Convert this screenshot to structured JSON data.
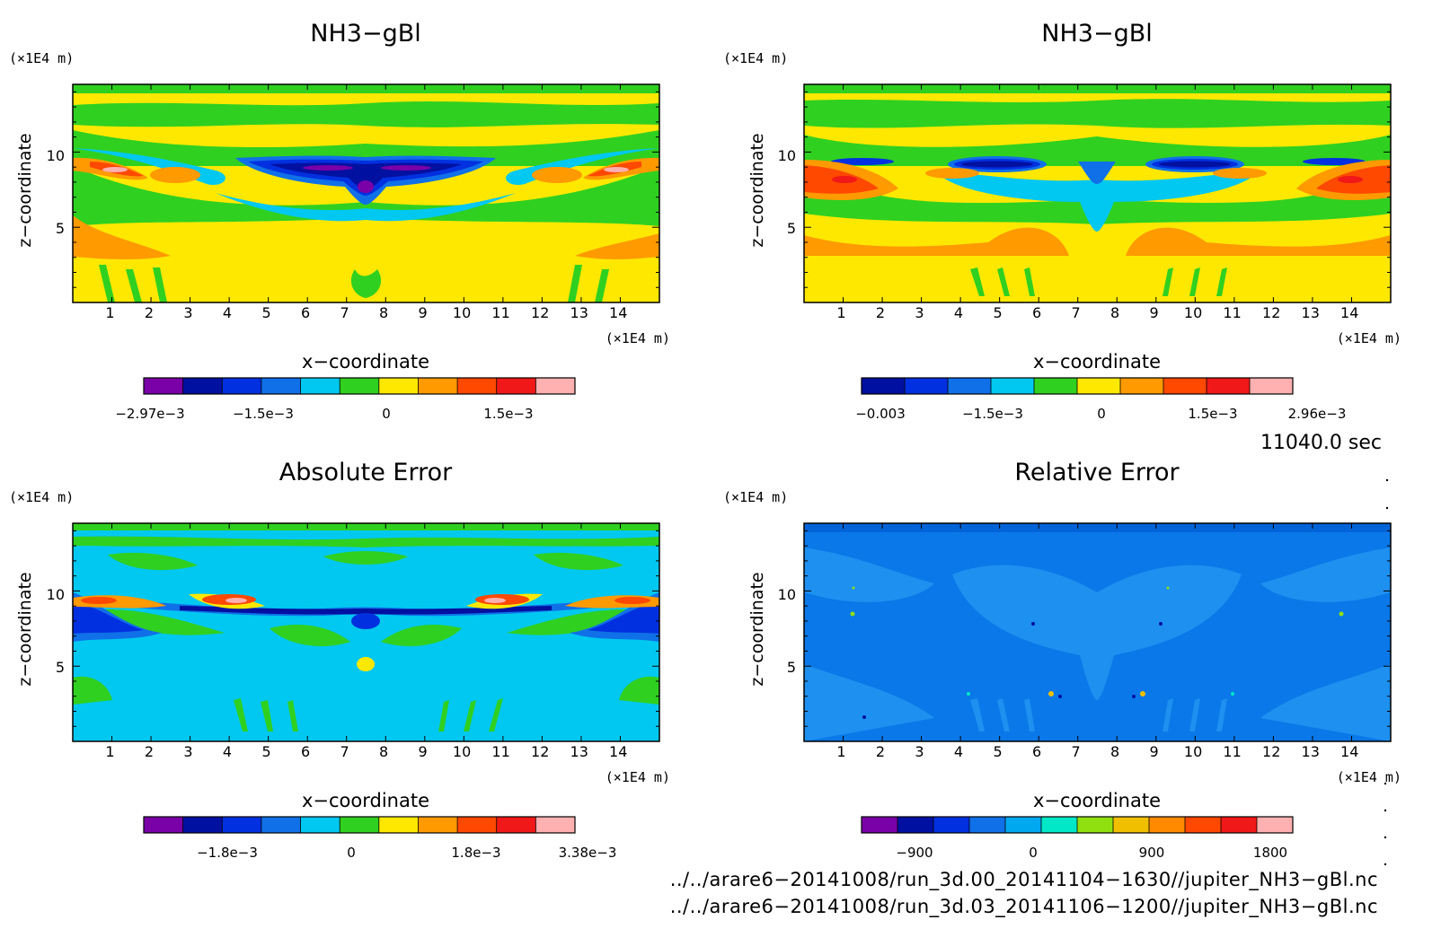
{
  "chart_data": [
    {
      "type": "heatmap",
      "title": "NH3−gBl",
      "xlabel": "x−coordinate",
      "ylabel": "z−coordinate",
      "x_unit": "(×1E4 m)",
      "y_unit": "(×1E4 m)",
      "xlim": [
        0,
        15
      ],
      "ylim": [
        0,
        14.5
      ],
      "xticks": [
        "1",
        "2",
        "3",
        "4",
        "5",
        "6",
        "7",
        "8",
        "9",
        "10",
        "11",
        "12",
        "13",
        "14"
      ],
      "yticks": [
        "5",
        "10"
      ],
      "colorbar": {
        "colors": [
          "#7a00a8",
          "#0010a0",
          "#0030e0",
          "#1070e8",
          "#00c8f0",
          "#30d020",
          "#ffe800",
          "#ff9a00",
          "#ff4800",
          "#f01818",
          "#ffb0b0"
        ],
        "tick_labels": [
          "−2.97e−3",
          "−1.5e−3",
          "0",
          "1.5e−3"
        ],
        "tick_values": [
          -0.00297,
          -0.0015,
          0,
          0.0015
        ]
      },
      "background": "#ffe800"
    },
    {
      "type": "heatmap",
      "title": "NH3−gBl",
      "xlabel": "x−coordinate",
      "ylabel": "z−coordinate",
      "x_unit": "(×1E4 m)",
      "y_unit": "(×1E4 m)",
      "xlim": [
        0,
        15
      ],
      "ylim": [
        0,
        14.5
      ],
      "xticks": [
        "1",
        "2",
        "3",
        "4",
        "5",
        "6",
        "7",
        "8",
        "9",
        "10",
        "11",
        "12",
        "13",
        "14"
      ],
      "yticks": [
        "5",
        "10"
      ],
      "colorbar": {
        "colors": [
          "#0010a0",
          "#0030e0",
          "#1070e8",
          "#00c8f0",
          "#30d020",
          "#ffe800",
          "#ff9a00",
          "#ff4800",
          "#f01818",
          "#ffb0b0"
        ],
        "tick_labels": [
          "−0.003",
          "−1.5e−3",
          "0",
          "1.5e−3",
          "2.96e−3"
        ],
        "tick_values": [
          -0.003,
          -0.0015,
          0,
          0.0015,
          0.00296
        ]
      },
      "background": "#ffe800"
    },
    {
      "type": "heatmap",
      "title": "Absolute Error",
      "xlabel": "x−coordinate",
      "ylabel": "z−coordinate",
      "x_unit": "(×1E4 m)",
      "y_unit": "(×1E4 m)",
      "xlim": [
        0,
        15
      ],
      "ylim": [
        0,
        14.5
      ],
      "xticks": [
        "1",
        "2",
        "3",
        "4",
        "5",
        "6",
        "7",
        "8",
        "9",
        "10",
        "11",
        "12",
        "13",
        "14"
      ],
      "yticks": [
        "5",
        "10"
      ],
      "colorbar": {
        "colors": [
          "#7a00a8",
          "#0010a0",
          "#0030e0",
          "#1070e8",
          "#00c8f0",
          "#30d020",
          "#ffe800",
          "#ff9a00",
          "#ff4800",
          "#f01818",
          "#ffb0b0"
        ],
        "tick_labels": [
          "−1.8e−3",
          "0",
          "1.8e−3",
          "3.38e−3"
        ],
        "tick_values": [
          -0.0018,
          0,
          0.0018,
          0.00338
        ]
      },
      "background": "#00c8f0"
    },
    {
      "type": "heatmap",
      "title": "Relative Error",
      "xlabel": "x−coordinate",
      "ylabel": "z−coordinate",
      "x_unit": "(×1E4 m)",
      "y_unit": "(×1E4 m)",
      "xlim": [
        0,
        15
      ],
      "ylim": [
        0,
        14.5
      ],
      "xticks": [
        "1",
        "2",
        "3",
        "4",
        "5",
        "6",
        "7",
        "8",
        "9",
        "10",
        "11",
        "12",
        "13",
        "14"
      ],
      "yticks": [
        "5",
        "10"
      ],
      "colorbar": {
        "colors": [
          "#7a00a8",
          "#0010a0",
          "#0030e0",
          "#1070e8",
          "#00a8f0",
          "#00e8c8",
          "#90e010",
          "#f0c000",
          "#ff8a00",
          "#ff4800",
          "#f01818",
          "#ffb0b0"
        ],
        "tick_labels": [
          "−900",
          "0",
          "900",
          "1800"
        ],
        "tick_values": [
          -900,
          0,
          900,
          1800
        ]
      },
      "background": "#0a78e8"
    }
  ],
  "time_label": "11040.0 sec",
  "footer": {
    "line1": "../../arare6−20141008/run_3d.00_20141104−1630//jupiter_NH3−gBl.nc",
    "line2": "../../arare6−20141008/run_3d.03_20141106−1200//jupiter_NH3−gBl.nc"
  }
}
